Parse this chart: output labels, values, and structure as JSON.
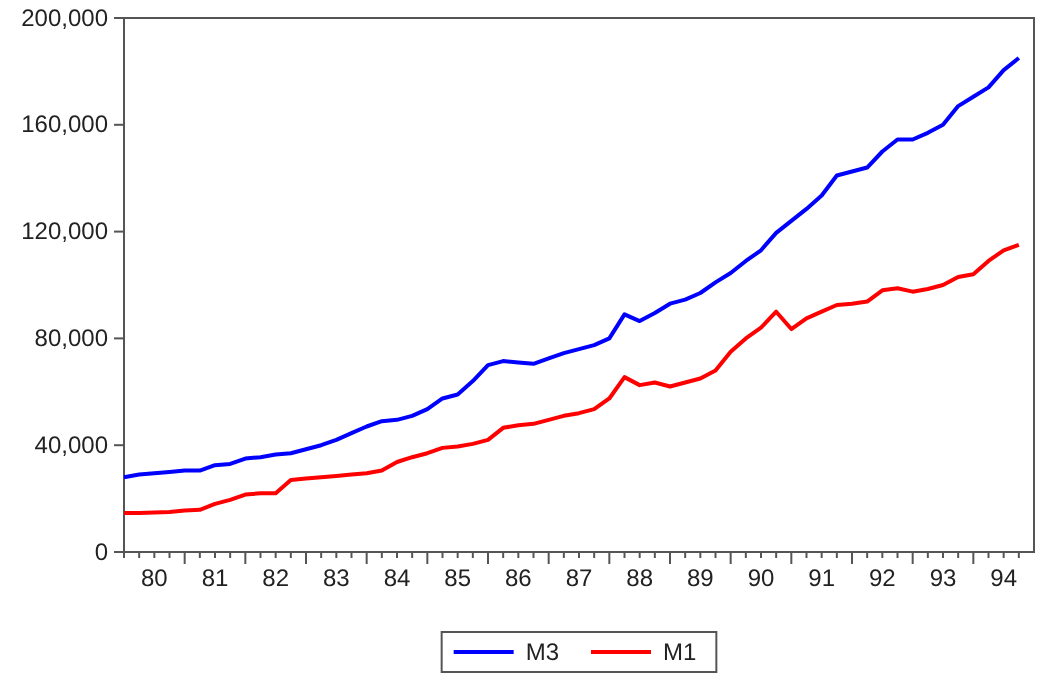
{
  "chart_data": {
    "type": "line",
    "categories": [
      null,
      null,
      "80",
      null,
      null,
      null,
      "81",
      null,
      null,
      null,
      "82",
      null,
      null,
      null,
      "83",
      null,
      null,
      null,
      "84",
      null,
      null,
      null,
      "85",
      null,
      null,
      null,
      "86",
      null,
      null,
      null,
      "87",
      null,
      null,
      null,
      "88",
      null,
      null,
      null,
      "89",
      null,
      null,
      null,
      "90",
      null,
      null,
      null,
      "91",
      null,
      null,
      null,
      "92",
      null,
      null,
      null,
      "93",
      null,
      null,
      null,
      "94",
      null
    ],
    "series": [
      {
        "name": "M3",
        "color": "#0000ff",
        "values": [
          28000,
          29000,
          29500,
          30000,
          30500,
          30500,
          32500,
          33000,
          35000,
          35500,
          36500,
          37000,
          38500,
          40000,
          42000,
          44500,
          47000,
          49000,
          49500,
          51000,
          53500,
          57500,
          59000,
          64000,
          70000,
          71500,
          71000,
          70500,
          72500,
          74500,
          76000,
          77500,
          80000,
          89000,
          86500,
          89500,
          93000,
          94500,
          97000,
          101000,
          104500,
          109000,
          113000,
          119500,
          124000,
          128500,
          133500,
          141000,
          142500,
          144000,
          150000,
          154500,
          154500,
          157000,
          160000,
          167000,
          170500,
          174000,
          180500,
          185000
        ]
      },
      {
        "name": "M1",
        "color": "#ff0000",
        "values": [
          14600,
          14600,
          14800,
          15000,
          15500,
          15800,
          18000,
          19500,
          21500,
          22000,
          22000,
          27000,
          27500,
          28000,
          28500,
          29000,
          29500,
          30500,
          33700,
          35500,
          37000,
          39000,
          39500,
          40500,
          42000,
          46500,
          47500,
          48000,
          49500,
          51000,
          52000,
          53500,
          57500,
          65500,
          62500,
          63500,
          62000,
          63500,
          65000,
          68000,
          75000,
          80000,
          84000,
          90000,
          83500,
          87500,
          90000,
          92500,
          93000,
          93800,
          98000,
          98800,
          97500,
          98500,
          100000,
          103000,
          104000,
          109000,
          113000,
          115000
        ]
      }
    ],
    "ylim": [
      0,
      200000
    ],
    "yticks": [
      {
        "value": 0,
        "label": "0"
      },
      {
        "value": 40000,
        "label": "40,000"
      },
      {
        "value": 80000,
        "label": "80,000"
      },
      {
        "value": 120000,
        "label": "120,000"
      },
      {
        "value": 160000,
        "label": "160,000"
      },
      {
        "value": 200000,
        "label": "200,000"
      }
    ],
    "grid": false,
    "legend": "bottom",
    "marker": "none",
    "line_style": "solid"
  }
}
